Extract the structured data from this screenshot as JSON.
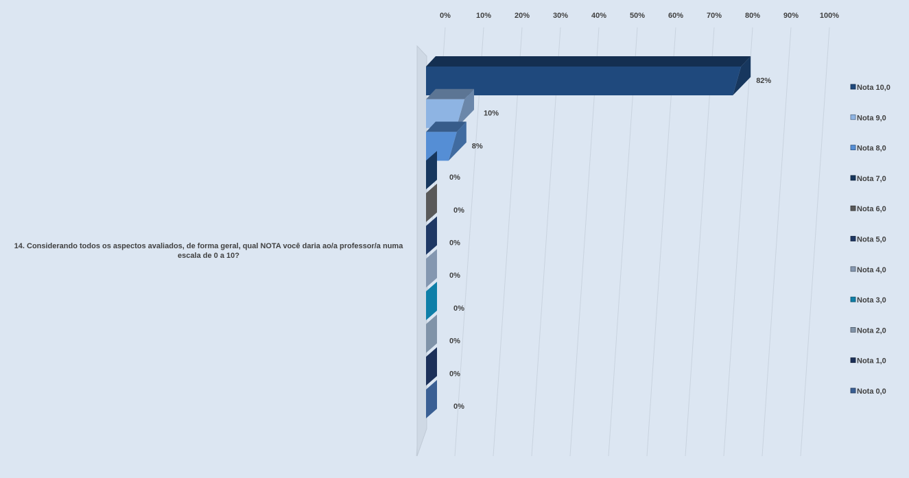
{
  "chart_data": {
    "type": "bar",
    "orientation": "horizontal",
    "three_d": true,
    "category": "14. Considerando todos os aspectos avaliados, de forma geral, qual NOTA você daria ao/a professor/a numa escala de 0 a 10?",
    "x_ticks": [
      "0%",
      "10%",
      "20%",
      "30%",
      "40%",
      "50%",
      "60%",
      "70%",
      "80%",
      "90%",
      "100%"
    ],
    "xlim": [
      0,
      100
    ],
    "grid": true,
    "legend_position": "right",
    "series": [
      {
        "name": "Nota 10,0",
        "value": 82,
        "label": "82%",
        "color": "#1f497d"
      },
      {
        "name": "Nota 9,0",
        "value": 10,
        "label": "10%",
        "color": "#8eb4e3"
      },
      {
        "name": "Nota 8,0",
        "value": 8,
        "label": "8%",
        "color": "#558ed5"
      },
      {
        "name": "Nota 7,0",
        "value": 0,
        "label": "0%",
        "color": "#17375e"
      },
      {
        "name": "Nota 6,0",
        "value": 0,
        "label": "0%",
        "color": "#595959"
      },
      {
        "name": "Nota 5,0",
        "value": 0,
        "label": "0%",
        "color": "#1f3864"
      },
      {
        "name": "Nota 4,0",
        "value": 0,
        "label": "0%",
        "color": "#8497b0"
      },
      {
        "name": "Nota 3,0",
        "value": 0,
        "label": "0%",
        "color": "#0f7fa8"
      },
      {
        "name": "Nota 2,0",
        "value": 0,
        "label": "0%",
        "color": "#8093a8"
      },
      {
        "name": "Nota 1,0",
        "value": 0,
        "label": "0%",
        "color": "#1c3059"
      },
      {
        "name": "Nota 0,0",
        "value": 0,
        "label": "0%",
        "color": "#3a5f94"
      }
    ]
  }
}
